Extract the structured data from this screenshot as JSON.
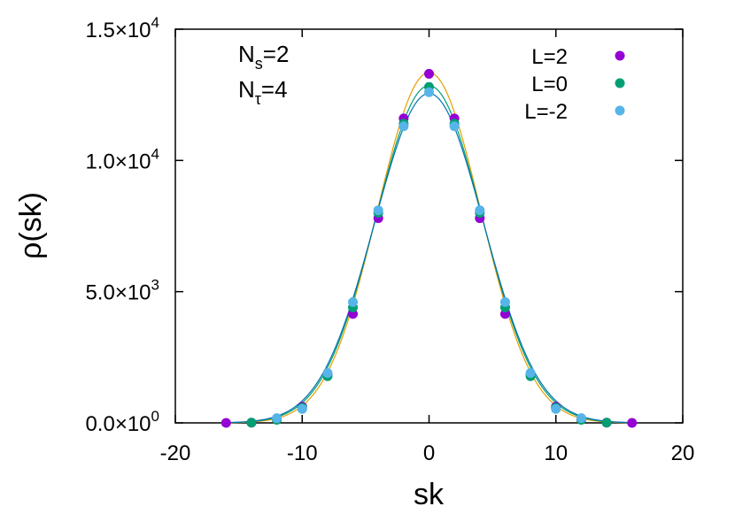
{
  "chart_data": {
    "type": "scatter",
    "xlabel": "sk",
    "ylabel": "ρ(sk)",
    "xlim": [
      -20,
      20
    ],
    "ylim": [
      0,
      15000
    ],
    "grid": false,
    "legend_position": "top-right",
    "x_ticks": [
      {
        "value": -20,
        "label": "-20"
      },
      {
        "value": -10,
        "label": "-10"
      },
      {
        "value": 0,
        "label": "0"
      },
      {
        "value": 10,
        "label": "10"
      },
      {
        "value": 20,
        "label": "20"
      }
    ],
    "y_ticks": [
      {
        "value": 0,
        "mantissa": "0.0×10",
        "exponent": "0"
      },
      {
        "value": 5000,
        "mantissa": "5.0×10",
        "exponent": "3"
      },
      {
        "value": 10000,
        "mantissa": "1.0×10",
        "exponent": "4"
      },
      {
        "value": 15000,
        "mantissa": "1.5×10",
        "exponent": "4"
      }
    ],
    "annotations": [
      {
        "base": "N",
        "sub": "s",
        "rest": "=2"
      },
      {
        "base": "N",
        "sub": "τ",
        "rest": "=4"
      }
    ],
    "series": [
      {
        "name": "L=2",
        "color": "#9400d3",
        "x": [
          -16,
          -14,
          -12,
          -10,
          -8,
          -6,
          -4,
          -2,
          0,
          2,
          4,
          6,
          8,
          10,
          12,
          14,
          16
        ],
        "y": [
          0,
          10,
          150,
          620,
          1850,
          4150,
          7800,
          11600,
          13300,
          11600,
          7800,
          4150,
          1850,
          620,
          150,
          10,
          0
        ]
      },
      {
        "name": "L=0",
        "color": "#009e73",
        "x": [
          -14,
          -12,
          -10,
          -8,
          -6,
          -4,
          -2,
          0,
          2,
          4,
          6,
          8,
          10,
          12,
          14
        ],
        "y": [
          10,
          120,
          580,
          1780,
          4400,
          8000,
          11400,
          12800,
          11400,
          8000,
          4400,
          1780,
          580,
          120,
          10
        ]
      },
      {
        "name": "L=-2",
        "color": "#56b4e9",
        "x": [
          -12,
          -10,
          -8,
          -6,
          -4,
          -2,
          0,
          2,
          4,
          6,
          8,
          10,
          12
        ],
        "y": [
          180,
          530,
          1900,
          4600,
          8100,
          11300,
          12600,
          11300,
          8100,
          4600,
          1900,
          530,
          180
        ]
      }
    ],
    "fit_curves": [
      {
        "color": "#e69f00",
        "amplitude": 13350,
        "sigma": 4.07
      },
      {
        "color": "#009e73",
        "amplitude": 12850,
        "sigma": 4.21
      },
      {
        "color": "#0072b2",
        "amplitude": 12550,
        "sigma": 4.3
      }
    ]
  }
}
